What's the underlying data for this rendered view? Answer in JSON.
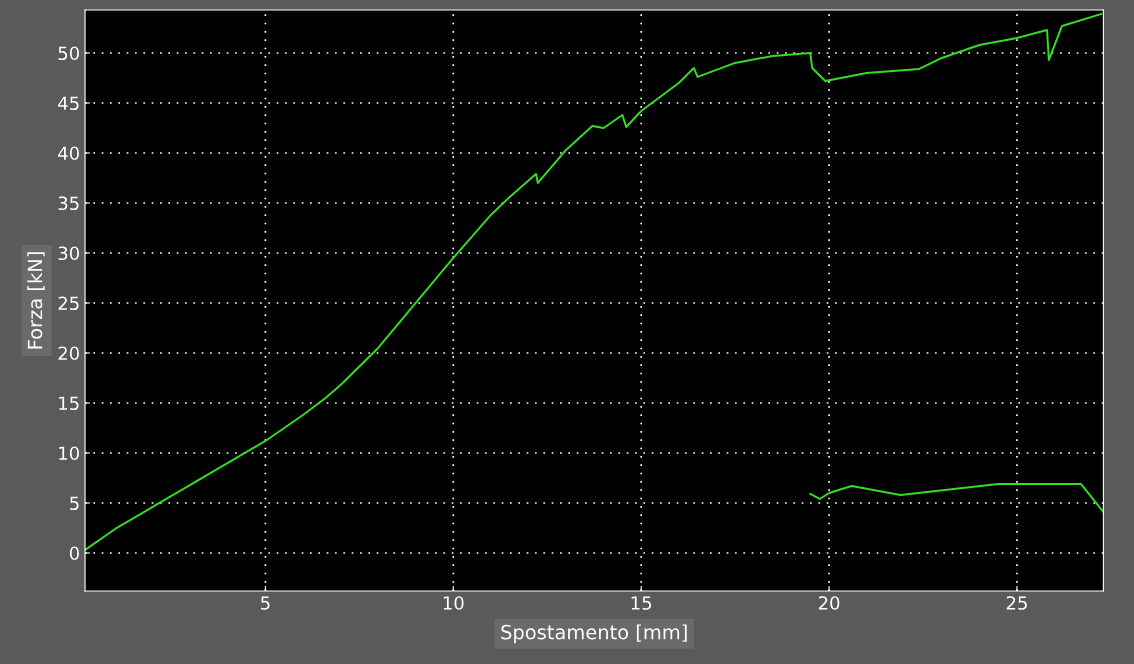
{
  "chart_data": {
    "type": "line",
    "xlabel": "Spostamento [mm]",
    "ylabel": "Forza [kN]",
    "xlim": [
      0.2,
      27.3
    ],
    "ylim": [
      -3.8,
      54.3
    ],
    "xticks": [
      5,
      10,
      15,
      20,
      25
    ],
    "yticks": [
      0,
      5,
      10,
      15,
      20,
      25,
      30,
      35,
      40,
      45,
      50
    ],
    "grid": true,
    "line_style": "solid",
    "marker": "none",
    "series": [
      {
        "color": "#33dd22",
        "x": [
          0.2,
          1,
          2,
          3,
          4,
          5,
          6,
          6.6,
          7,
          8,
          9,
          10,
          11,
          11.5,
          12.2,
          12.25,
          13,
          13.7,
          14,
          14.5,
          14.6,
          15,
          16,
          16.4,
          16.5,
          17.5,
          18.5,
          19.5,
          19.55,
          19.9,
          21,
          22.4,
          23,
          24,
          25,
          25.8,
          25.85,
          26.2,
          27.25
        ],
        "values": [
          0.3,
          2.4,
          4.6,
          6.8,
          9,
          11.2,
          13.8,
          15.5,
          16.8,
          20.5,
          25,
          29.5,
          33.8,
          35.6,
          37.9,
          37,
          40.3,
          42.7,
          42.5,
          43.8,
          42.6,
          44.2,
          47,
          48.5,
          47.6,
          49,
          49.7,
          50,
          48.5,
          47.2,
          48,
          48.4,
          49.5,
          50.8,
          51.5,
          52.3,
          49.3,
          52.7,
          53.9
        ]
      },
      {
        "color": "#33dd22",
        "x": [
          19.5,
          19.75,
          20,
          20.6,
          21.9,
          24.5,
          26.7,
          27.3
        ],
        "values": [
          5.9,
          5.4,
          6.0,
          6.7,
          5.8,
          6.9,
          6.9,
          4.1
        ]
      }
    ]
  }
}
